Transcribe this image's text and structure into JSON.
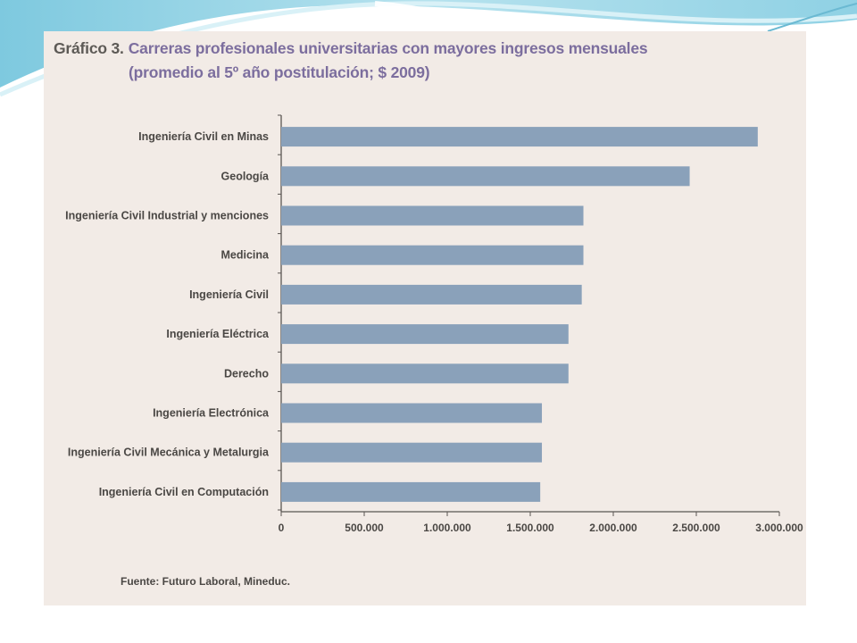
{
  "figure": {
    "number_label": "Gráfico 3.",
    "title_line1": "Carreras profesionales universitarias con mayores ingresos mensuales",
    "title_line2": "(promedio al 5º año postitulación; $ 2009)",
    "source": "Fuente: Futuro Laboral, Mineduc."
  },
  "colors": {
    "bar": "#8aa1ba",
    "panel": "#f2ebe6",
    "title": "#7c6e9e",
    "text": "#4a4744",
    "axis": "#5a5652"
  },
  "chart_data": {
    "type": "bar",
    "orientation": "horizontal",
    "title": "Carreras profesionales universitarias con mayores ingresos mensuales (promedio al 5º año postitulación; $ 2009)",
    "categories": [
      "Ingeniería Civil en Minas",
      "Geología",
      "Ingeniería Civil Industrial y menciones",
      "Medicina",
      "Ingeniería Civil",
      "Ingeniería Eléctrica",
      "Derecho",
      "Ingeniería Electrónica",
      "Ingeniería Civil Mecánica y Metalurgia",
      "Ingeniería Civil en Computación"
    ],
    "values": [
      2870000,
      2460000,
      1820000,
      1820000,
      1810000,
      1730000,
      1730000,
      1570000,
      1570000,
      1560000
    ],
    "xlim": [
      0,
      3000000
    ],
    "xticks": [
      0,
      500000,
      1000000,
      1500000,
      2000000,
      2500000,
      3000000
    ],
    "xtick_labels": [
      "0",
      "500.000",
      "1.000.000",
      "1.500.000",
      "2.000.000",
      "2.500.000",
      "3.000.000"
    ],
    "grid": false,
    "legend": "none"
  }
}
